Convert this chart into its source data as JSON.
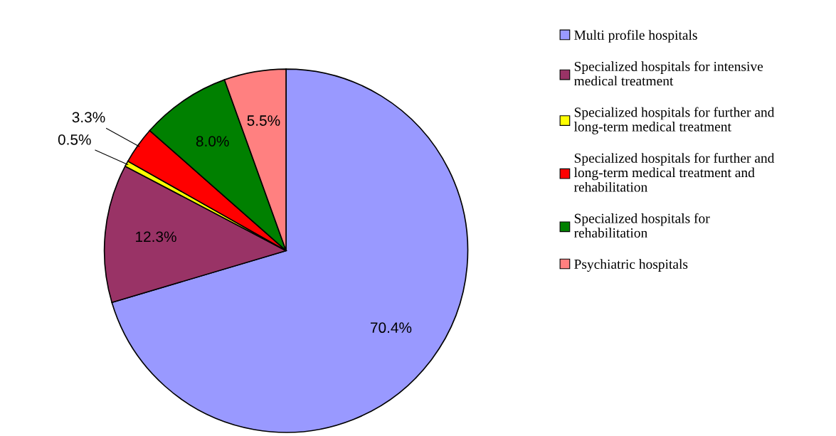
{
  "chart_data": {
    "type": "pie",
    "categories": [
      "Multi profile hospitals",
      "Specialized hospitals for intensive medical treatment",
      "Specialized hospitals for further and long-term medical treatment",
      "Specialized hospitals for further and long-term medical treatment and rehabilitation",
      "Specialized hospitals for rehabilitation",
      "Psychiatric hospitals"
    ],
    "values": [
      70.4,
      12.3,
      0.5,
      3.3,
      8.0,
      5.5
    ],
    "colors": [
      "#9999ff",
      "#993366",
      "#ffff00",
      "#ff0000",
      "#008000",
      "#ff8080"
    ],
    "value_labels": [
      "70.4%",
      "12.3%",
      "0.5%",
      "3.3%",
      "8.0%",
      "5.5%"
    ],
    "legend": "right"
  }
}
